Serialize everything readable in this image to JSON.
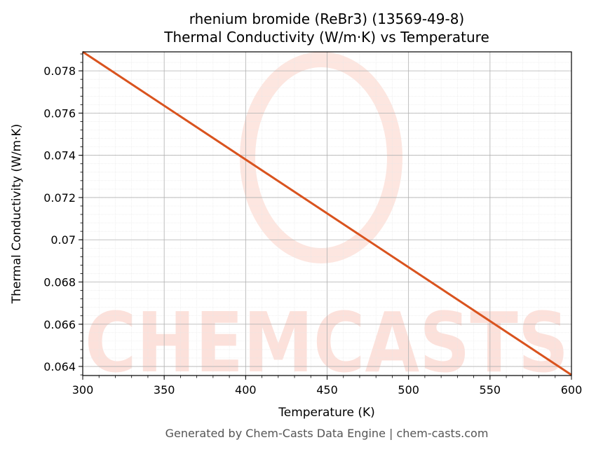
{
  "chart_data": {
    "type": "line",
    "title": "rhenium bromide (ReBr3) (13569-49-8)",
    "subtitle": "Thermal Conductivity (W/m·K) vs Temperature",
    "x_label": "Temperature (K)",
    "y_label": "Thermal Conductivity (W/m·K)",
    "watermark": "CHEMCASTS",
    "footer": "Generated by Chem-Casts Data Engine | chem-casts.com",
    "x": [
      300,
      600
    ],
    "series": [
      {
        "name": "Thermal Conductivity",
        "color": "#d9531e",
        "values": [
          0.0789,
          0.0636
        ]
      }
    ],
    "xlim": [
      300,
      600
    ],
    "xticks": [
      300,
      350,
      400,
      450,
      500,
      550,
      600
    ],
    "ylim": [
      0.06357,
      0.0789
    ],
    "yticks": [
      0.064,
      0.066,
      0.068,
      0.07,
      0.072,
      0.074,
      0.076,
      0.078
    ],
    "grid": true,
    "minor_grid": true
  }
}
